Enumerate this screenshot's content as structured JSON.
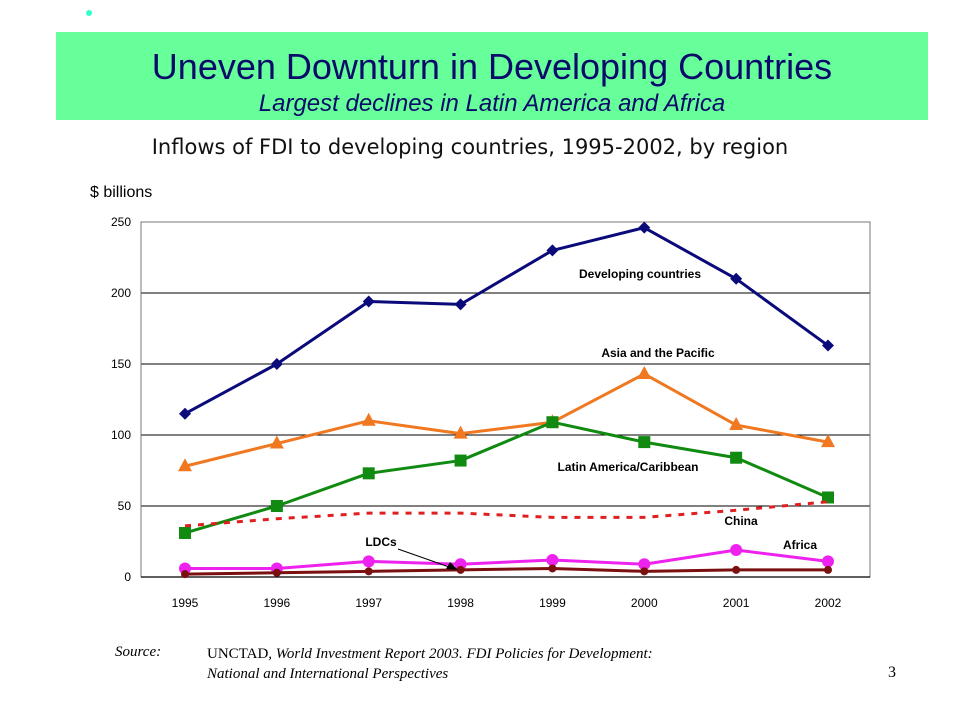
{
  "slide": {
    "title": "Uneven Downturn in Developing Countries",
    "subtitle": "Largest declines in Latin America and Africa",
    "chart_heading": "Inflows of FDI to developing countries, 1995-2002, by region",
    "y_unit_label": "$ billions",
    "source_key": "Source:",
    "source_org": "UNCTAD",
    "source_line1_rest": ", World Investment Report 2003.  FDI Policies for Development:",
    "source_line2": "National and International Perspectives",
    "page_number": "3"
  },
  "colors": {
    "title_band": "#66ff99",
    "title_text": "#0a0a6a",
    "bullet": "#33ffcc"
  },
  "chart_data": {
    "type": "line",
    "x": [
      1995,
      1996,
      1997,
      1998,
      1999,
      2000,
      2001,
      2002
    ],
    "ylim": [
      0,
      250
    ],
    "yticks": [
      0,
      50,
      100,
      150,
      200,
      250
    ],
    "grid": true,
    "series": [
      {
        "name": "Developing countries",
        "color": "#0a0a7a",
        "marker": "diamond",
        "dashed": false,
        "values": [
          115,
          150,
          194,
          192,
          230,
          246,
          210,
          163
        ]
      },
      {
        "name": "Asia and the Pacific",
        "color": "#f07820",
        "marker": "triangle",
        "dashed": false,
        "values": [
          78,
          94,
          110,
          101,
          109,
          143,
          107,
          95
        ]
      },
      {
        "name": "Latin America/Caribbean",
        "color": "#108a10",
        "marker": "square",
        "dashed": false,
        "values": [
          31,
          50,
          73,
          82,
          109,
          95,
          84,
          56
        ]
      },
      {
        "name": "China",
        "color": "#e02020",
        "marker": "none",
        "dashed": true,
        "values": [
          36,
          41,
          45,
          45,
          42,
          42,
          47,
          53
        ]
      },
      {
        "name": "Africa",
        "color": "#ee22ee",
        "marker": "circle",
        "dashed": false,
        "values": [
          6,
          6,
          11,
          9,
          12,
          9,
          19,
          11
        ]
      },
      {
        "name": "LDCs",
        "color": "#7a1010",
        "marker": "dot",
        "dashed": false,
        "values": [
          2,
          3,
          4,
          5,
          6,
          4,
          5,
          5
        ]
      }
    ]
  }
}
